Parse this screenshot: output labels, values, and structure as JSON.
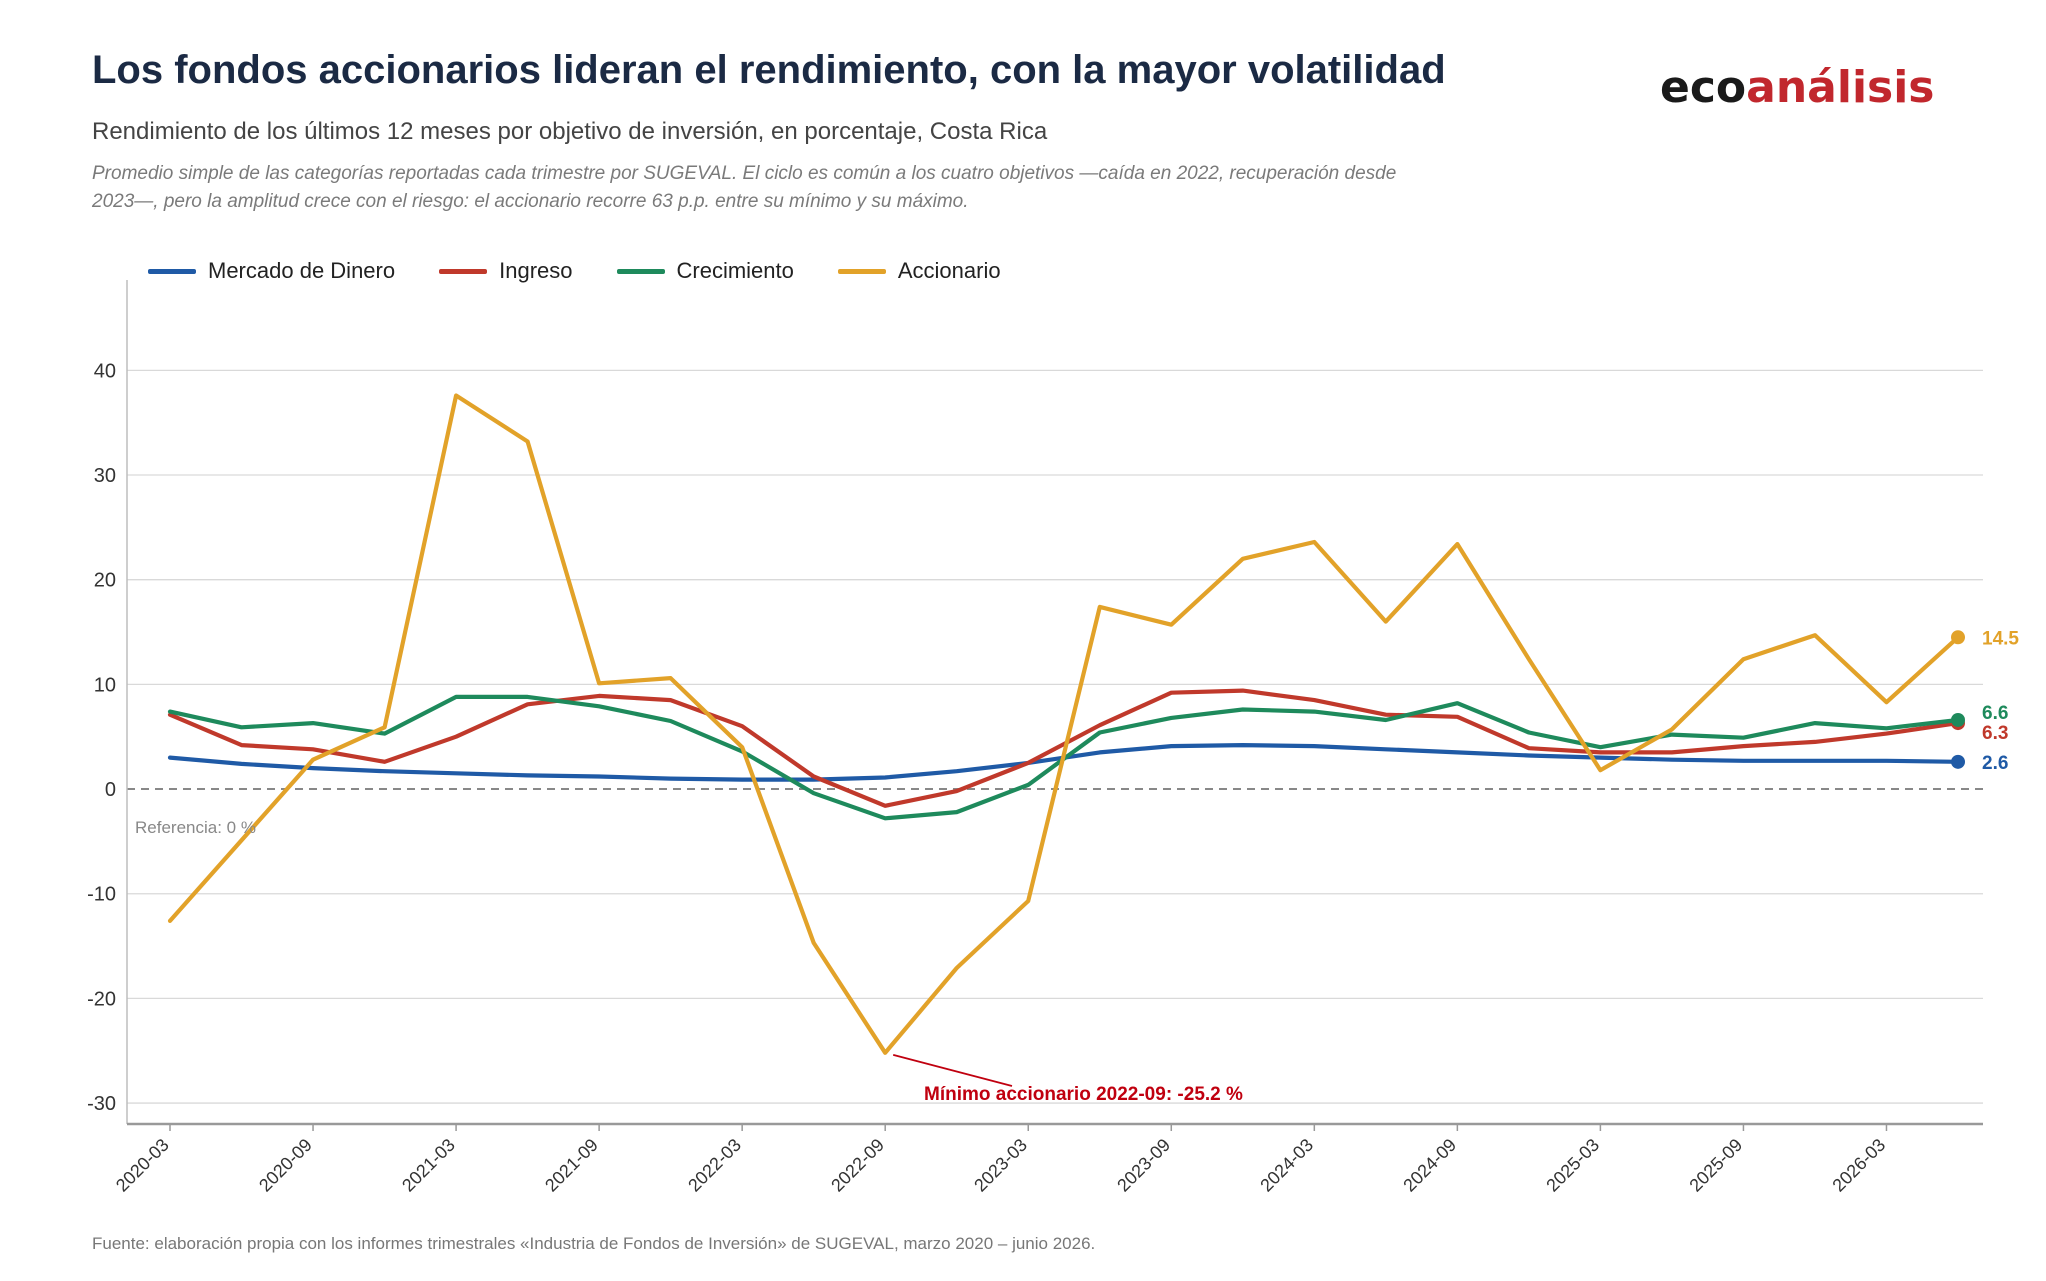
{
  "header": {
    "title": "Los fondos accionarios lideran el rendimiento, con la mayor volatilidad",
    "subtitle": "Rendimiento de los últimos 12 meses por objetivo de inversión, en porcentaje, Costa Rica",
    "note": "Promedio simple de las categorías reportadas cada trimestre por SUGEVAL. El ciclo es común a los cuatro objetivos —caída en 2022, recuperación desde 2023—, pero la amplitud crece con el riesgo: el accionario recorre 63 p.p. entre su mínimo y su máximo."
  },
  "logo": {
    "part1": "eco",
    "part2": "análisis"
  },
  "footer": {
    "source": "Fuente: elaboración propia con los informes trimestrales «Industria de Fondos de Inversión» de SUGEVAL, marzo 2020 – junio 2026."
  },
  "colors": {
    "dinero": "#1f5aa6",
    "ingreso": "#c0392b",
    "crecimiento": "#1e8a5c",
    "accionario": "#e2a229",
    "annotation": "#c0000f"
  },
  "chart_data": {
    "type": "line",
    "x": [
      "2020-03",
      "2020-06",
      "2020-09",
      "2020-12",
      "2021-03",
      "2021-06",
      "2021-09",
      "2021-12",
      "2022-03",
      "2022-06",
      "2022-09",
      "2022-12",
      "2023-03",
      "2023-06",
      "2023-09",
      "2023-12",
      "2024-03",
      "2024-06",
      "2024-09",
      "2024-12",
      "2025-03",
      "2025-06",
      "2025-09",
      "2025-12",
      "2026-03",
      "2026-06"
    ],
    "x_tick_labels": [
      "2020-03",
      "2020-09",
      "2021-03",
      "2021-09",
      "2022-03",
      "2022-09",
      "2023-03",
      "2023-09",
      "2024-03",
      "2024-09",
      "2025-03",
      "2025-09",
      "2026-03"
    ],
    "ylim": [
      -32,
      45
    ],
    "y_ticks": [
      -30,
      -20,
      -10,
      0,
      10,
      20,
      30,
      40
    ],
    "grid": "horizontal",
    "legend_position": "top-left",
    "reference_line": {
      "value": 0,
      "label": "Referencia: 0 %"
    },
    "series": [
      {
        "key": "dinero",
        "name": "Mercado de Dinero",
        "end_label": "2.6",
        "values": [
          3.0,
          2.4,
          2.0,
          1.7,
          1.5,
          1.3,
          1.2,
          1.0,
          0.9,
          0.9,
          1.1,
          1.7,
          2.5,
          3.5,
          4.1,
          4.2,
          4.1,
          3.8,
          3.5,
          3.2,
          3.0,
          2.8,
          2.7,
          2.7,
          2.7,
          2.6
        ]
      },
      {
        "key": "ingreso",
        "name": "Ingreso",
        "end_label": "6.3",
        "values": [
          7.1,
          4.2,
          3.8,
          2.6,
          5.0,
          8.1,
          8.9,
          8.5,
          6.0,
          1.2,
          -1.6,
          -0.2,
          2.5,
          6.1,
          9.2,
          9.4,
          8.5,
          7.1,
          6.9,
          3.9,
          3.5,
          3.5,
          4.1,
          4.5,
          5.3,
          6.3
        ]
      },
      {
        "key": "crecimiento",
        "name": "Crecimiento",
        "end_label": "6.6",
        "values": [
          7.4,
          5.9,
          6.3,
          5.3,
          8.8,
          8.8,
          7.9,
          6.5,
          3.6,
          -0.4,
          -2.8,
          -2.2,
          0.4,
          5.4,
          6.8,
          7.6,
          7.4,
          6.6,
          8.2,
          5.4,
          4.0,
          5.2,
          4.9,
          6.3,
          5.8,
          6.6
        ]
      },
      {
        "key": "accionario",
        "name": "Accionario",
        "end_label": "14.5",
        "values": [
          -12.6,
          -4.9,
          2.8,
          5.9,
          37.6,
          33.2,
          10.1,
          10.6,
          4.0,
          -14.7,
          -25.2,
          -17.1,
          -10.7,
          17.4,
          15.7,
          22.0,
          23.6,
          16.0,
          23.4,
          12.4,
          1.8,
          5.7,
          12.4,
          14.7,
          8.3,
          14.5
        ]
      }
    ],
    "annotations": [
      {
        "text": "Mínimo accionario 2022-09: -25.2 %",
        "series": "accionario",
        "x": "2022-09",
        "y": -25.2
      }
    ]
  }
}
